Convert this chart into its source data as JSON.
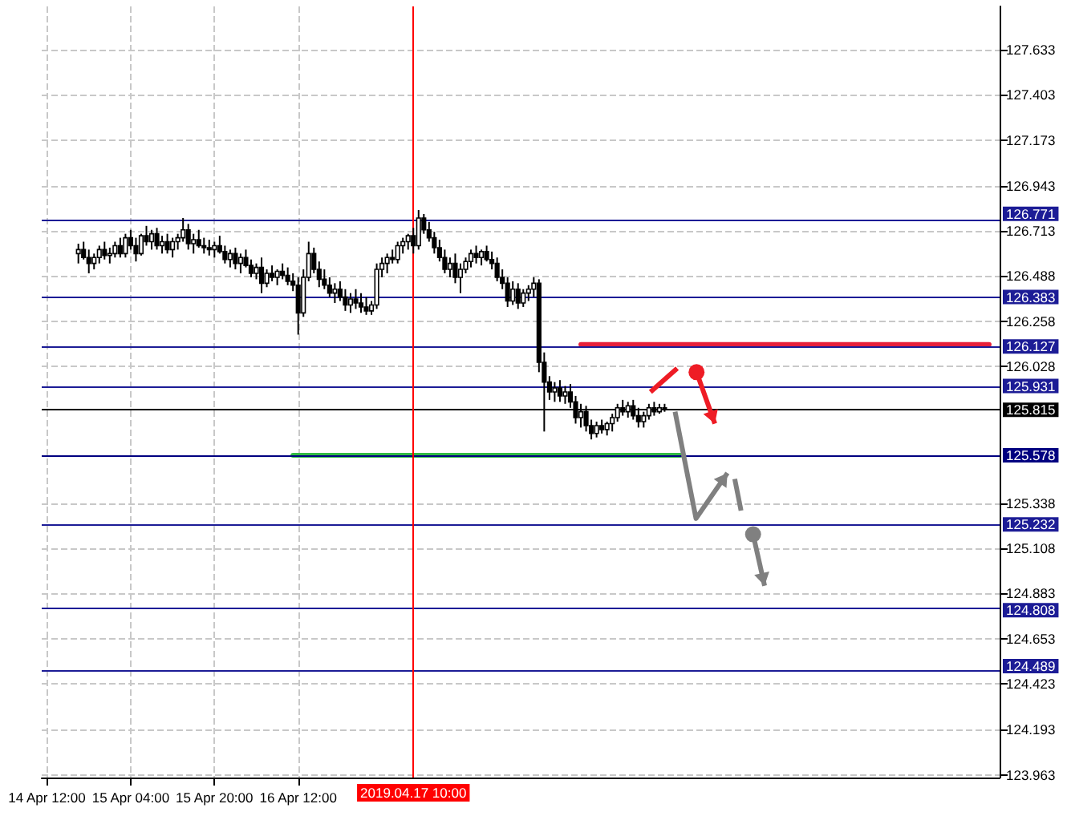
{
  "chart_data": {
    "type": "candlestick",
    "x": [
      "2019-04-14T18:00",
      "2019-04-14T19:00",
      "2019-04-14T20:00",
      "2019-04-14T21:00",
      "2019-04-14T22:00",
      "2019-04-14T23:00",
      "2019-04-15T00:00",
      "2019-04-15T01:00",
      "2019-04-15T02:00",
      "2019-04-15T03:00",
      "2019-04-15T04:00",
      "2019-04-15T05:00",
      "2019-04-15T06:00",
      "2019-04-15T07:00",
      "2019-04-15T08:00",
      "2019-04-15T09:00",
      "2019-04-15T10:00",
      "2019-04-15T11:00",
      "2019-04-15T12:00",
      "2019-04-15T13:00",
      "2019-04-15T14:00",
      "2019-04-15T15:00",
      "2019-04-15T16:00",
      "2019-04-15T17:00",
      "2019-04-15T18:00",
      "2019-04-15T19:00",
      "2019-04-15T20:00",
      "2019-04-15T21:00",
      "2019-04-15T22:00",
      "2019-04-15T23:00",
      "2019-04-16T00:00",
      "2019-04-16T01:00",
      "2019-04-16T02:00",
      "2019-04-16T03:00",
      "2019-04-16T04:00",
      "2019-04-16T05:00",
      "2019-04-16T06:00",
      "2019-04-16T07:00",
      "2019-04-16T08:00",
      "2019-04-16T09:00",
      "2019-04-16T10:00",
      "2019-04-16T11:00",
      "2019-04-16T12:00",
      "2019-04-16T13:00",
      "2019-04-16T14:00",
      "2019-04-16T15:00",
      "2019-04-16T16:00",
      "2019-04-16T17:00",
      "2019-04-16T18:00",
      "2019-04-16T19:00",
      "2019-04-16T20:00",
      "2019-04-16T21:00",
      "2019-04-16T22:00",
      "2019-04-16T23:00",
      "2019-04-17T00:00",
      "2019-04-17T01:00",
      "2019-04-17T02:00",
      "2019-04-17T03:00",
      "2019-04-17T04:00",
      "2019-04-17T05:00",
      "2019-04-17T06:00",
      "2019-04-17T07:00",
      "2019-04-17T08:00",
      "2019-04-17T09:00",
      "2019-04-17T10:00",
      "2019-04-17T11:00",
      "2019-04-17T12:00",
      "2019-04-17T13:00",
      "2019-04-17T14:00",
      "2019-04-17T15:00",
      "2019-04-17T16:00",
      "2019-04-17T17:00",
      "2019-04-17T18:00",
      "2019-04-17T19:00",
      "2019-04-17T20:00",
      "2019-04-17T21:00",
      "2019-04-17T22:00",
      "2019-04-17T23:00",
      "2019-04-18T00:00",
      "2019-04-18T01:00",
      "2019-04-18T02:00",
      "2019-04-18T03:00",
      "2019-04-18T04:00",
      "2019-04-18T05:00",
      "2019-04-18T06:00",
      "2019-04-18T07:00",
      "2019-04-18T08:00",
      "2019-04-18T09:00",
      "2019-04-18T10:00",
      "2019-04-18T11:00",
      "2019-04-18T12:00",
      "2019-04-18T13:00",
      "2019-04-18T14:00",
      "2019-04-18T15:00",
      "2019-04-18T16:00",
      "2019-04-18T17:00",
      "2019-04-18T18:00",
      "2019-04-18T19:00",
      "2019-04-18T20:00",
      "2019-04-18T21:00",
      "2019-04-18T22:00",
      "2019-04-18T23:00",
      "2019-04-19T00:00",
      "2019-04-19T01:00",
      "2019-04-19T02:00",
      "2019-04-19T03:00",
      "2019-04-19T04:00",
      "2019-04-19T05:00",
      "2019-04-19T06:00",
      "2019-04-19T07:00",
      "2019-04-19T08:00",
      "2019-04-19T09:00",
      "2019-04-19T10:00"
    ],
    "ohlc": [
      [
        126.6,
        126.65,
        126.55,
        126.62
      ],
      [
        126.62,
        126.66,
        126.57,
        126.58
      ],
      [
        126.58,
        126.62,
        126.5,
        126.55
      ],
      [
        126.55,
        126.6,
        126.52,
        126.58
      ],
      [
        126.58,
        126.64,
        126.55,
        126.62
      ],
      [
        126.62,
        126.66,
        126.57,
        126.59
      ],
      [
        126.59,
        126.63,
        126.55,
        126.6
      ],
      [
        126.6,
        126.66,
        126.58,
        126.64
      ],
      [
        126.64,
        126.68,
        126.58,
        126.6
      ],
      [
        126.6,
        126.7,
        126.58,
        126.68
      ],
      [
        126.68,
        126.72,
        126.62,
        126.64
      ],
      [
        126.64,
        126.68,
        126.56,
        126.6
      ],
      [
        126.6,
        126.7,
        126.59,
        126.69
      ],
      [
        126.69,
        126.74,
        126.64,
        126.66
      ],
      [
        126.66,
        126.72,
        126.62,
        126.7
      ],
      [
        126.7,
        126.73,
        126.62,
        126.64
      ],
      [
        126.64,
        126.69,
        126.6,
        126.66
      ],
      [
        126.66,
        126.7,
        126.6,
        126.62
      ],
      [
        126.62,
        126.68,
        126.58,
        126.66
      ],
      [
        126.66,
        126.7,
        126.62,
        126.68
      ],
      [
        126.68,
        126.78,
        126.66,
        126.72
      ],
      [
        126.72,
        126.75,
        126.62,
        126.65
      ],
      [
        126.65,
        126.7,
        126.6,
        126.67
      ],
      [
        126.67,
        126.72,
        126.63,
        126.64
      ],
      [
        126.64,
        126.68,
        126.6,
        126.63
      ],
      [
        126.63,
        126.67,
        126.59,
        126.62
      ],
      [
        126.62,
        126.66,
        126.58,
        126.64
      ],
      [
        126.64,
        126.69,
        126.6,
        126.61
      ],
      [
        126.61,
        126.64,
        126.55,
        126.57
      ],
      [
        126.57,
        126.62,
        126.53,
        126.6
      ],
      [
        126.6,
        126.63,
        126.52,
        126.55
      ],
      [
        126.55,
        126.6,
        126.5,
        126.58
      ],
      [
        126.58,
        126.62,
        126.53,
        126.54
      ],
      [
        126.54,
        126.57,
        126.48,
        126.5
      ],
      [
        126.5,
        126.55,
        126.47,
        126.53
      ],
      [
        126.53,
        126.58,
        126.4,
        126.45
      ],
      [
        126.45,
        126.52,
        126.43,
        126.5
      ],
      [
        126.5,
        126.54,
        126.46,
        126.48
      ],
      [
        126.48,
        126.52,
        126.44,
        126.51
      ],
      [
        126.51,
        126.55,
        126.47,
        126.49
      ],
      [
        126.49,
        126.53,
        126.44,
        126.46
      ],
      [
        126.46,
        126.5,
        126.41,
        126.44
      ],
      [
        126.44,
        126.48,
        126.19,
        126.3
      ],
      [
        126.3,
        126.52,
        126.28,
        126.48
      ],
      [
        126.48,
        126.66,
        126.46,
        126.6
      ],
      [
        126.6,
        126.63,
        126.5,
        126.52
      ],
      [
        126.52,
        126.56,
        126.43,
        126.47
      ],
      [
        126.47,
        126.52,
        126.42,
        126.44
      ],
      [
        126.44,
        126.48,
        126.38,
        126.4
      ],
      [
        126.4,
        126.45,
        126.35,
        126.42
      ],
      [
        126.42,
        126.46,
        126.36,
        126.38
      ],
      [
        126.38,
        126.42,
        126.31,
        126.34
      ],
      [
        126.34,
        126.4,
        126.3,
        126.37
      ],
      [
        126.37,
        126.42,
        126.32,
        126.35
      ],
      [
        126.35,
        126.4,
        126.3,
        126.33
      ],
      [
        126.33,
        126.38,
        126.29,
        126.31
      ],
      [
        126.31,
        126.36,
        126.29,
        126.34
      ],
      [
        126.34,
        126.55,
        126.32,
        126.52
      ],
      [
        126.52,
        126.58,
        126.48,
        126.55
      ],
      [
        126.55,
        126.6,
        126.5,
        126.58
      ],
      [
        126.58,
        126.62,
        126.55,
        126.57
      ],
      [
        126.57,
        126.66,
        126.55,
        126.64
      ],
      [
        126.64,
        126.68,
        126.6,
        126.66
      ],
      [
        126.66,
        126.7,
        126.62,
        126.69
      ],
      [
        126.69,
        126.73,
        126.6,
        126.64
      ],
      [
        126.64,
        126.82,
        126.62,
        126.78
      ],
      [
        126.78,
        126.8,
        126.7,
        126.72
      ],
      [
        126.72,
        126.76,
        126.66,
        126.68
      ],
      [
        126.68,
        126.71,
        126.6,
        126.63
      ],
      [
        126.63,
        126.67,
        126.56,
        126.58
      ],
      [
        126.58,
        126.62,
        126.5,
        126.52
      ],
      [
        126.52,
        126.58,
        126.48,
        126.55
      ],
      [
        126.55,
        126.6,
        126.45,
        126.48
      ],
      [
        126.48,
        126.55,
        126.4,
        126.52
      ],
      [
        126.52,
        126.58,
        126.5,
        126.56
      ],
      [
        126.56,
        126.62,
        126.53,
        126.6
      ],
      [
        126.6,
        126.64,
        126.55,
        126.58
      ],
      [
        126.58,
        126.62,
        126.54,
        126.61
      ],
      [
        126.61,
        126.64,
        126.56,
        126.57
      ],
      [
        126.57,
        126.61,
        126.52,
        126.55
      ],
      [
        126.55,
        126.58,
        126.46,
        126.48
      ],
      [
        126.48,
        126.52,
        126.42,
        126.45
      ],
      [
        126.45,
        126.48,
        126.33,
        126.36
      ],
      [
        126.36,
        126.46,
        126.34,
        126.42
      ],
      [
        126.42,
        126.45,
        126.32,
        126.35
      ],
      [
        126.35,
        126.42,
        126.33,
        126.4
      ],
      [
        126.4,
        126.44,
        126.36,
        126.42
      ],
      [
        126.42,
        126.48,
        126.38,
        126.45
      ],
      [
        126.45,
        126.47,
        126.0,
        126.05
      ],
      [
        126.05,
        126.1,
        125.7,
        125.95
      ],
      [
        125.95,
        125.98,
        125.86,
        125.9
      ],
      [
        125.9,
        125.95,
        125.85,
        125.92
      ],
      [
        125.92,
        125.96,
        125.85,
        125.88
      ],
      [
        125.88,
        125.93,
        125.84,
        125.9
      ],
      [
        125.9,
        125.94,
        125.82,
        125.85
      ],
      [
        125.85,
        125.88,
        125.74,
        125.77
      ],
      [
        125.77,
        125.84,
        125.72,
        125.8
      ],
      [
        125.8,
        125.83,
        125.7,
        125.73
      ],
      [
        125.73,
        125.76,
        125.66,
        125.69
      ],
      [
        125.69,
        125.75,
        125.67,
        125.73
      ],
      [
        125.73,
        125.76,
        125.69,
        125.71
      ],
      [
        125.71,
        125.75,
        125.68,
        125.74
      ],
      [
        125.74,
        125.79,
        125.7,
        125.77
      ],
      [
        125.77,
        125.84,
        125.75,
        125.82
      ],
      [
        125.82,
        125.86,
        125.78,
        125.8
      ],
      [
        125.8,
        125.85,
        125.77,
        125.83
      ],
      [
        125.83,
        125.86,
        125.76,
        125.78
      ],
      [
        125.78,
        125.82,
        125.72,
        125.75
      ],
      [
        125.75,
        125.8,
        125.72,
        125.78
      ],
      [
        125.78,
        125.84,
        125.76,
        125.82
      ],
      [
        125.82,
        125.85,
        125.78,
        125.8
      ],
      [
        125.8,
        125.84,
        125.79,
        125.82
      ],
      [
        125.82,
        125.84,
        125.8,
        125.815
      ]
    ],
    "series": [
      {
        "type": "line",
        "color": "#e8203a",
        "x": [
          "2019-04-18T18:00",
          "2019-04-22T00:00"
        ],
        "values": [
          126.14,
          126.14
        ]
      },
      {
        "type": "line",
        "color": "#33bb44",
        "x": [
          "2019-04-16T11:00",
          "2019-04-19T13:00"
        ],
        "values": [
          125.58,
          125.58
        ]
      }
    ],
    "ref_lines": [
      {
        "axis": "y",
        "value": 126.771,
        "label": "126.771",
        "color": "#1c1c96"
      },
      {
        "axis": "y",
        "value": 126.383,
        "label": "126.383",
        "color": "#1c1c96"
      },
      {
        "axis": "y",
        "value": 126.127,
        "label": "126.127",
        "color": "#1c1c96"
      },
      {
        "axis": "y",
        "value": 125.931,
        "label": "125.931",
        "color": "#1c1c96"
      },
      {
        "axis": "y",
        "value": 125.815,
        "label": "125.815",
        "color": "#000000"
      },
      {
        "axis": "y",
        "value": 125.578,
        "label": "125.578",
        "color": "#000080"
      },
      {
        "axis": "y",
        "value": 125.232,
        "label": "125.232",
        "color": "#1c1c96"
      },
      {
        "axis": "y",
        "value": 124.808,
        "label": "124.808",
        "color": "#1c1c96"
      },
      {
        "axis": "y",
        "value": 124.489,
        "label": "124.489",
        "color": "#1c1c96"
      },
      {
        "axis": "x",
        "value": "2019-04-17T10:00",
        "label": "2019.04.17 10:00",
        "color": "#ff0000"
      }
    ],
    "xlim": [
      "2019-04-14T11:00",
      "2019-04-22T02:00"
    ],
    "xticks": [
      {
        "value": "2019-04-14T12:00",
        "label": "14 Apr 12:00"
      },
      {
        "value": "2019-04-15T04:00",
        "label": "15 Apr 04:00"
      },
      {
        "value": "2019-04-15T20:00",
        "label": "15 Apr 20:00"
      },
      {
        "value": "2019-04-16T12:00",
        "label": "16 Apr 12:00"
      }
    ],
    "ylim": [
      123.95,
      127.85
    ],
    "yticks": [
      123.963,
      124.193,
      124.423,
      124.653,
      124.883,
      125.108,
      125.338,
      126.028,
      126.258,
      126.488,
      126.713,
      126.943,
      127.173,
      127.403,
      127.633
    ],
    "grid": true
  }
}
